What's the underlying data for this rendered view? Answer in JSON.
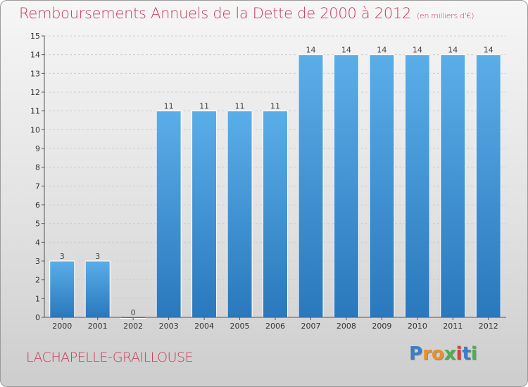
{
  "chart_data": {
    "type": "bar",
    "title": "Remboursements Annuels de la Dette de 2000 à 2012",
    "unit": "(en milliers d'€)",
    "categories": [
      "2000",
      "2001",
      "2002",
      "2003",
      "2004",
      "2005",
      "2006",
      "2007",
      "2008",
      "2009",
      "2010",
      "2011",
      "2012"
    ],
    "values": [
      3,
      3,
      0,
      11,
      11,
      11,
      11,
      14,
      14,
      14,
      14,
      14,
      14
    ],
    "value_labels": [
      "3",
      "3",
      "0",
      "11",
      "11",
      "11",
      "11",
      "14",
      "14",
      "14",
      "14",
      "14",
      "14"
    ],
    "ylim": [
      0,
      15
    ],
    "yticks": [
      0,
      1,
      2,
      3,
      4,
      5,
      6,
      7,
      8,
      9,
      10,
      11,
      12,
      13,
      14,
      15
    ],
    "grid": true,
    "bar_color": "#3d8fd6"
  },
  "commune": "LACHAPELLE-GRAILLOUSE",
  "logo": {
    "letters": [
      "P",
      "r",
      "o",
      "x",
      "i",
      "t",
      "i"
    ],
    "colors": [
      "#3a7dc9",
      "#e8902a",
      "#e8902a",
      "#4caf50",
      "#e03c3c",
      "#3a7dc9",
      "#4caf50"
    ]
  }
}
